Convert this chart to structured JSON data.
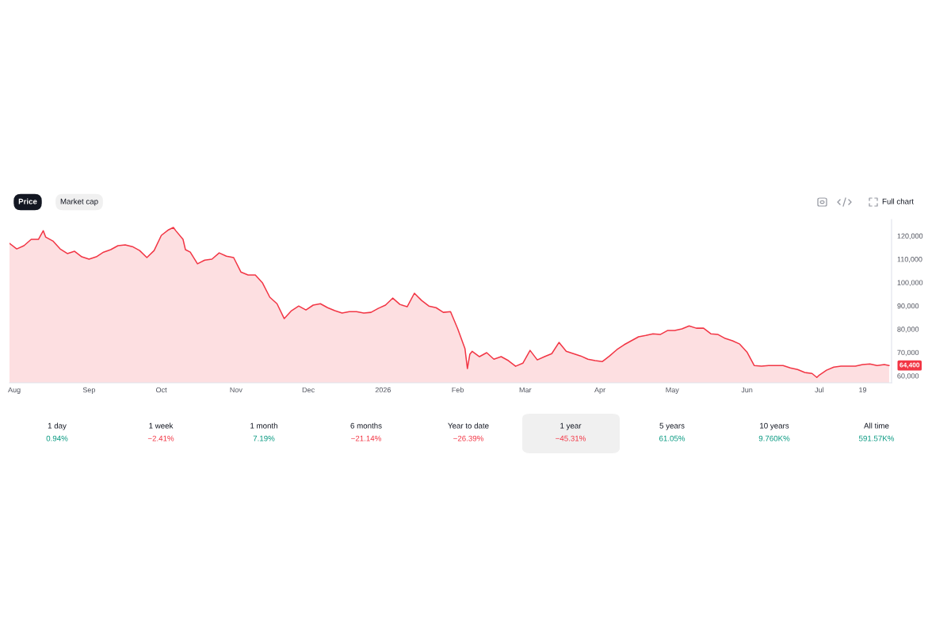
{
  "chart_data": {
    "type": "area",
    "x": [
      "2025-07-30",
      "2025-08-02",
      "2025-08-05",
      "2025-08-08",
      "2025-08-11",
      "2025-08-13",
      "2025-08-14",
      "2025-08-17",
      "2025-08-20",
      "2025-08-23",
      "2025-08-26",
      "2025-08-29",
      "2025-09-01",
      "2025-09-04",
      "2025-09-07",
      "2025-09-10",
      "2025-09-13",
      "2025-09-16",
      "2025-09-19",
      "2025-09-22",
      "2025-09-25",
      "2025-09-28",
      "2025-10-01",
      "2025-10-04",
      "2025-10-06",
      "2025-10-07",
      "2025-10-10",
      "2025-10-11",
      "2025-10-13",
      "2025-10-16",
      "2025-10-19",
      "2025-10-22",
      "2025-10-25",
      "2025-10-28",
      "2025-10-31",
      "2025-11-03",
      "2025-11-06",
      "2025-11-09",
      "2025-11-12",
      "2025-11-15",
      "2025-11-18",
      "2025-11-21",
      "2025-11-24",
      "2025-11-27",
      "2025-11-30",
      "2025-12-03",
      "2025-12-06",
      "2025-12-09",
      "2025-12-12",
      "2025-12-15",
      "2025-12-18",
      "2025-12-21",
      "2025-12-24",
      "2025-12-27",
      "2025-12-30",
      "2026-01-02",
      "2026-01-05",
      "2026-01-08",
      "2026-01-11",
      "2026-01-14",
      "2026-01-17",
      "2026-01-20",
      "2026-01-23",
      "2026-01-26",
      "2026-01-29",
      "2026-02-01",
      "2026-02-04",
      "2026-02-05",
      "2026-02-06",
      "2026-02-07",
      "2026-02-10",
      "2026-02-13",
      "2026-02-16",
      "2026-02-19",
      "2026-02-22",
      "2026-02-25",
      "2026-02-28",
      "2026-03-03",
      "2026-03-06",
      "2026-03-09",
      "2026-03-12",
      "2026-03-15",
      "2026-03-18",
      "2026-03-21",
      "2026-03-24",
      "2026-03-27",
      "2026-03-30",
      "2026-04-02",
      "2026-04-05",
      "2026-04-08",
      "2026-04-11",
      "2026-04-14",
      "2026-04-17",
      "2026-04-20",
      "2026-04-23",
      "2026-04-26",
      "2026-04-29",
      "2026-05-02",
      "2026-05-05",
      "2026-05-08",
      "2026-05-11",
      "2026-05-14",
      "2026-05-17",
      "2026-05-20",
      "2026-05-23",
      "2026-05-26",
      "2026-05-29",
      "2026-06-01",
      "2026-06-04",
      "2026-06-07",
      "2026-06-10",
      "2026-06-13",
      "2026-06-16",
      "2026-06-19",
      "2026-06-22",
      "2026-06-25",
      "2026-06-28",
      "2026-06-30",
      "2026-07-01",
      "2026-07-04",
      "2026-07-07",
      "2026-07-10",
      "2026-07-13",
      "2026-07-16",
      "2026-07-19",
      "2026-07-22",
      "2026-07-25",
      "2026-07-28",
      "2026-07-30"
    ],
    "series": [
      {
        "color": "#f23645",
        "values": [
          116800,
          114400,
          115800,
          118500,
          118500,
          122200,
          119500,
          117800,
          114400,
          112400,
          113400,
          111000,
          110000,
          111000,
          113000,
          114100,
          115800,
          116100,
          115400,
          113700,
          110700,
          113700,
          120200,
          122600,
          123600,
          122200,
          118500,
          114100,
          113000,
          108000,
          109600,
          110000,
          112700,
          111300,
          110700,
          104500,
          103200,
          103200,
          99800,
          93700,
          90900,
          84500,
          87900,
          89900,
          88200,
          90300,
          90900,
          89200,
          87900,
          86900,
          87500,
          87500,
          86900,
          87200,
          88900,
          90300,
          93300,
          90600,
          89600,
          95400,
          92300,
          89900,
          89200,
          87200,
          87500,
          80100,
          71600,
          63100,
          69200,
          70500,
          68200,
          69900,
          67100,
          68200,
          66500,
          64100,
          65400,
          70900,
          66800,
          68200,
          69500,
          74300,
          70500,
          69500,
          68500,
          67100,
          66500,
          66100,
          68500,
          71200,
          73300,
          75000,
          76700,
          77300,
          78000,
          77700,
          79400,
          79400,
          80100,
          81400,
          80400,
          80400,
          78000,
          77700,
          76000,
          75000,
          73600,
          70200,
          64400,
          64100,
          64400,
          64400,
          64400,
          63400,
          62700,
          61400,
          61000,
          59300,
          60300,
          62400,
          63700,
          64100,
          64100,
          64100,
          64800,
          65100,
          64400,
          64800,
          64400
        ]
      }
    ],
    "xlim": [
      "2025-07-30",
      "2026-07-31"
    ],
    "xticks": [
      {
        "value": "2025-08-01",
        "label": "Aug"
      },
      {
        "value": "2025-09-01",
        "label": "Sep"
      },
      {
        "value": "2025-10-01",
        "label": "Oct"
      },
      {
        "value": "2025-11-01",
        "label": "Nov"
      },
      {
        "value": "2025-12-01",
        "label": "Dec"
      },
      {
        "value": "2026-01-01",
        "label": "2026"
      },
      {
        "value": "2026-02-01",
        "label": "Feb"
      },
      {
        "value": "2026-03-01",
        "label": "Mar"
      },
      {
        "value": "2026-04-01",
        "label": "Apr"
      },
      {
        "value": "2026-05-01",
        "label": "May"
      },
      {
        "value": "2026-06-01",
        "label": "Jun"
      },
      {
        "value": "2026-07-01",
        "label": "Jul"
      },
      {
        "value": "2026-07-19",
        "label": "19"
      }
    ],
    "ylim": [
      57000,
      127000
    ],
    "yticks": [
      {
        "value": 60000,
        "label": "60,000"
      },
      {
        "value": 70000,
        "label": "70,000"
      },
      {
        "value": 80000,
        "label": "80,000"
      },
      {
        "value": 90000,
        "label": "90,000"
      },
      {
        "value": 100000,
        "label": "100,000"
      },
      {
        "value": 110000,
        "label": "110,000"
      },
      {
        "value": 120000,
        "label": "120,000"
      }
    ],
    "annotations": [
      "Price",
      "Market cap",
      "Full chart",
      "1 day",
      "0.94%",
      "1 week",
      "−2.41%",
      "1 month",
      "7.19%",
      "6 months",
      "−21.14%",
      "Year to date",
      "−26.39%",
      "1 year",
      "−45.31%",
      "5 years",
      "61.05%",
      "10 years",
      "9.760K%",
      "All time",
      "591.57K%",
      {
        "text": "64,400",
        "x": "2026-07-30",
        "y": 64400
      }
    ]
  }
}
